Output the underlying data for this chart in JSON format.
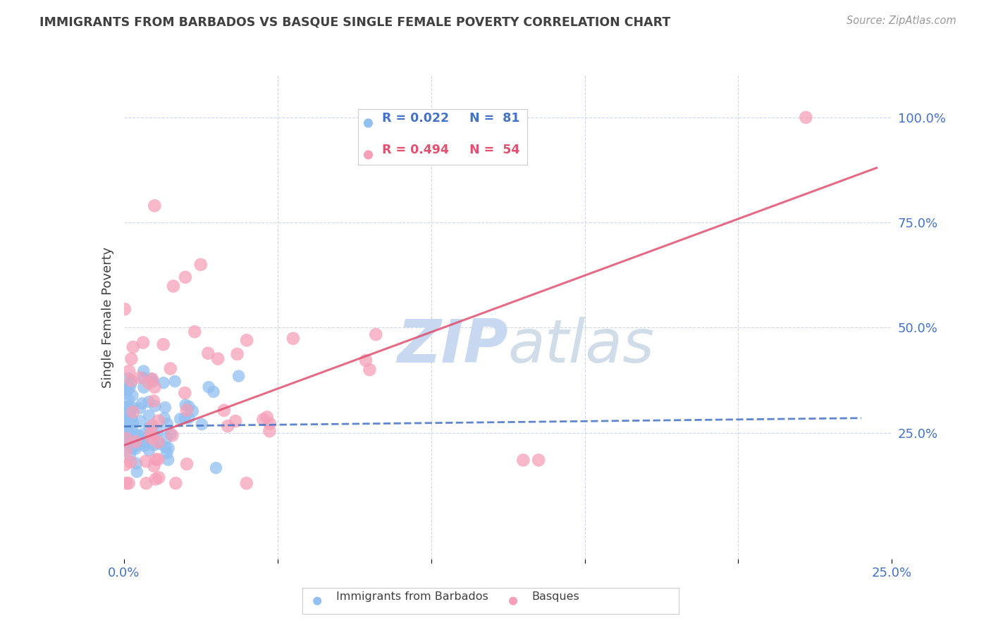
{
  "title": "IMMIGRANTS FROM BARBADOS VS BASQUE SINGLE FEMALE POVERTY CORRELATION CHART",
  "source": "Source: ZipAtlas.com",
  "ylabel": "Single Female Poverty",
  "yticks": [
    0.0,
    0.25,
    0.5,
    0.75,
    1.0
  ],
  "ytick_labels": [
    "",
    "25.0%",
    "50.0%",
    "75.0%",
    "100.0%"
  ],
  "xlim": [
    0.0,
    0.25
  ],
  "ylim": [
    -0.05,
    1.1
  ],
  "legend_r1": "R = 0.022",
  "legend_n1": "N =  81",
  "legend_r2": "R = 0.494",
  "legend_n2": "N =  54",
  "blue_color": "#92c0f0",
  "pink_color": "#f5a0b8",
  "trendline_blue_color": "#4472c4",
  "trendline_pink_color": "#e05070",
  "watermark_color": "#c8d8f0",
  "background_color": "#ffffff",
  "grid_color": "#d0d8e8",
  "axis_label_color": "#4472c4",
  "title_color": "#404040",
  "seed": 99,
  "n_blue": 81,
  "n_pink": 54,
  "blue_trend_x": [
    0.0,
    0.24
  ],
  "blue_trend_y": [
    0.265,
    0.285
  ],
  "pink_trend_x": [
    0.0,
    0.245
  ],
  "pink_trend_y": [
    0.22,
    0.88
  ]
}
